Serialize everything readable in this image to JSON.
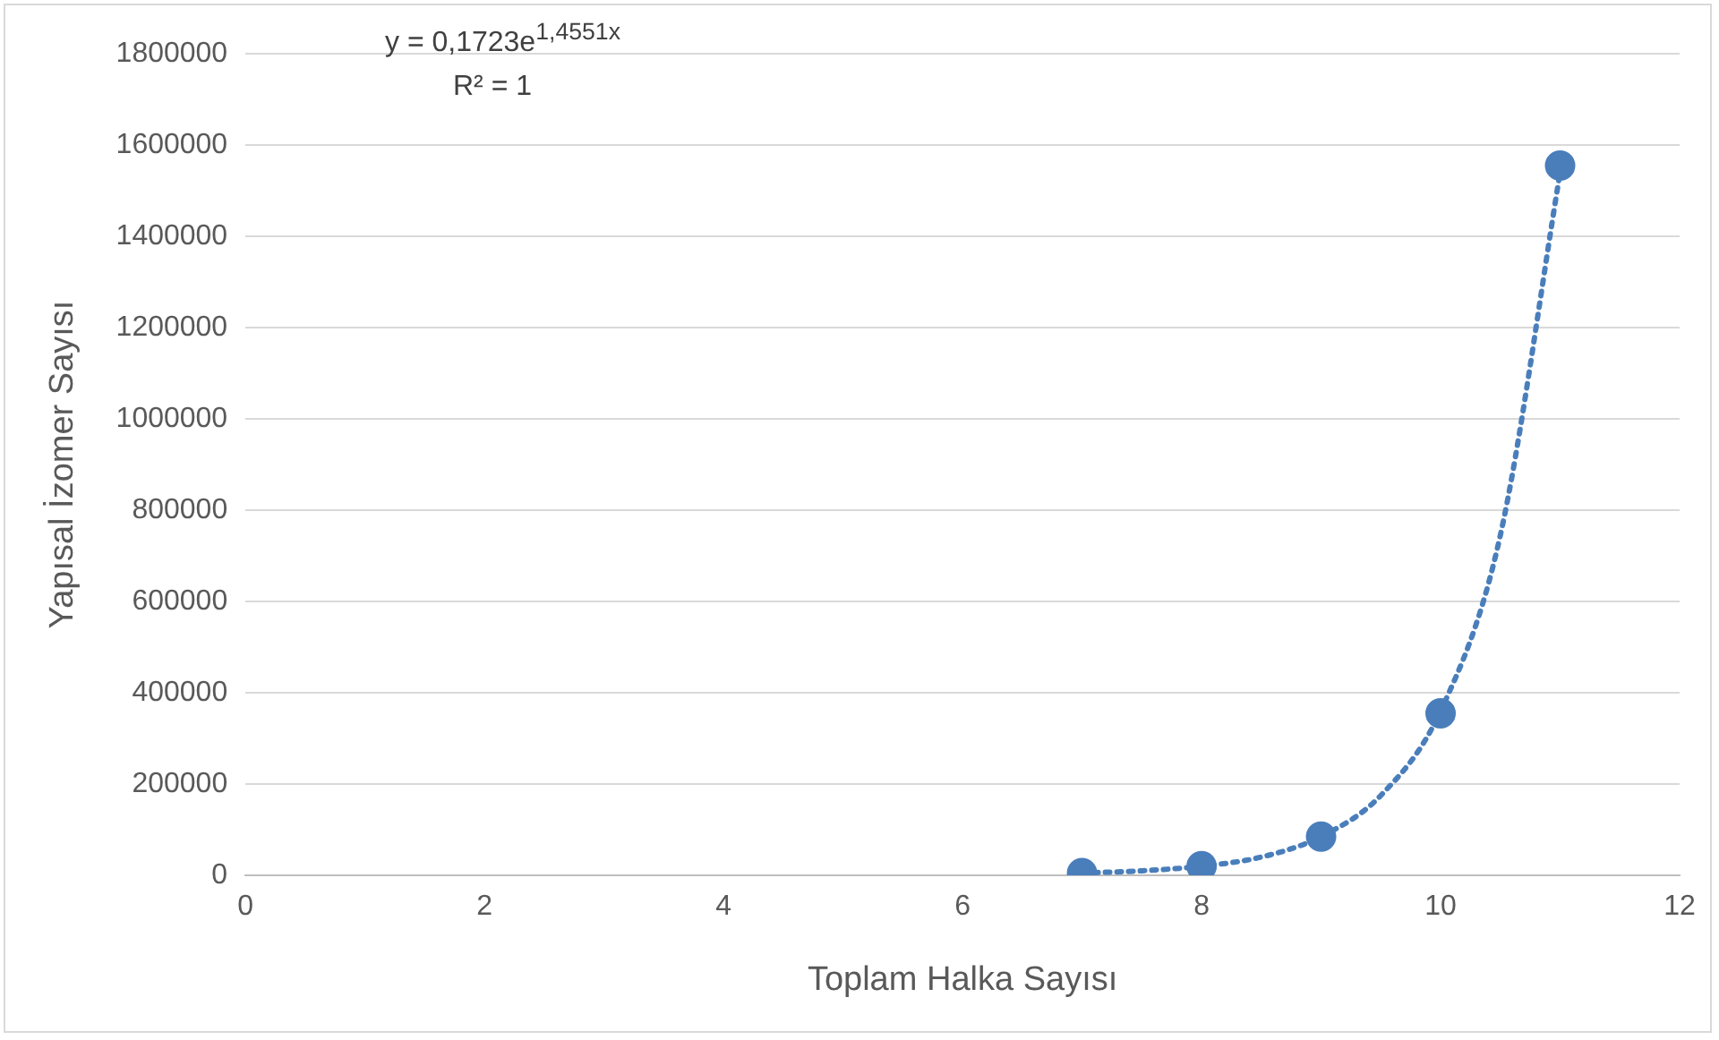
{
  "chart_data": {
    "type": "scatter",
    "xlabel": "Toplam Halka Sayısı",
    "ylabel": "Yapısal İzomer Sayısı",
    "series": [
      {
        "type": "scatter",
        "color": "#4a7ebb",
        "marker": "circle",
        "x": [
          7,
          8,
          9,
          10,
          11
        ],
        "values": [
          5000,
          20000,
          85000,
          355000,
          1555000
        ]
      },
      {
        "type": "line",
        "color": "#4a7ebb",
        "marker": "none",
        "line_style": "dotted",
        "x": [
          7,
          7.5,
          8,
          8.5,
          9,
          9.5,
          10,
          10.5,
          11
        ],
        "values": [
          5000,
          10000,
          20000,
          40000,
          85000,
          175000,
          360000,
          745000,
          1540000
        ]
      }
    ],
    "xlim": [
      0,
      12
    ],
    "xticks": [
      0,
      2,
      4,
      6,
      8,
      10,
      12
    ],
    "ylim": [
      0,
      1800000
    ],
    "yticks": [
      0,
      200000,
      400000,
      600000,
      800000,
      1000000,
      1200000,
      1400000,
      1600000,
      1800000
    ],
    "grid": "y",
    "legend": false,
    "annotations": [
      "y = 0,1723e$^{1,4551x}$",
      "R² = 1"
    ]
  }
}
